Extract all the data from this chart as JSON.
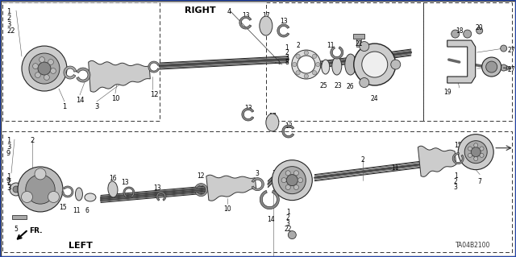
{
  "bg": "#ffffff",
  "diagram_code": "TA04B2100",
  "right_label": "RIGHT",
  "left_label": "LEFT",
  "fr_label": "FR."
}
